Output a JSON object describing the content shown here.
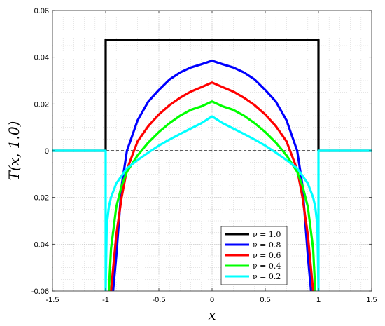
{
  "chart_data": {
    "type": "line",
    "xlabel": "x",
    "ylabel": "T(x, 1.0)",
    "xlim": [
      -1.5,
      1.5
    ],
    "ylim": [
      -0.06,
      0.06
    ],
    "x_ticks": [
      -1.5,
      -1,
      -0.5,
      0,
      0.5,
      1,
      1.5
    ],
    "x_tick_labels": [
      "-1.5",
      "-1",
      "-0.5",
      "0",
      "0.5",
      "1",
      "1.5"
    ],
    "y_ticks": [
      -0.06,
      -0.04,
      -0.02,
      0,
      0.02,
      0.04,
      0.06
    ],
    "y_tick_labels": [
      "-0.06",
      "-0.04",
      "-0.02",
      "0",
      "0.02",
      "0.04",
      "0.06"
    ],
    "grid": true,
    "minor_grid": true,
    "legend_position": "bottom-right",
    "reference_line": {
      "y": 0,
      "style": "dashed",
      "color": "#000000"
    },
    "series": [
      {
        "name": "ν = 1.0",
        "color": "#000000",
        "x": [
          -1.5,
          -1.0,
          -1.0,
          1.0,
          1.0,
          1.5
        ],
        "y": [
          0,
          0,
          0.0475,
          0.0475,
          0,
          0
        ]
      },
      {
        "name": "ν = 0.8",
        "color": "#0000ff",
        "x": [
          -0.93,
          -0.9,
          -0.85,
          -0.8,
          -0.7,
          -0.6,
          -0.5,
          -0.4,
          -0.3,
          -0.2,
          -0.1,
          0,
          0.1,
          0.2,
          0.3,
          0.4,
          0.5,
          0.6,
          0.7,
          0.8,
          0.85,
          0.9,
          0.93
        ],
        "y": [
          -0.06,
          -0.045,
          -0.015,
          0.0,
          0.013,
          0.021,
          0.026,
          0.0305,
          0.0335,
          0.0356,
          0.037,
          0.0385,
          0.037,
          0.0356,
          0.0335,
          0.0305,
          0.026,
          0.021,
          0.013,
          0.0,
          -0.015,
          -0.045,
          -0.06
        ]
      },
      {
        "name": "ν = 0.6",
        "color": "#ff0000",
        "x": [
          -0.95,
          -0.9,
          -0.85,
          -0.8,
          -0.7,
          -0.6,
          -0.5,
          -0.4,
          -0.3,
          -0.2,
          -0.1,
          0,
          0.1,
          0.2,
          0.3,
          0.4,
          0.5,
          0.6,
          0.7,
          0.8,
          0.85,
          0.9,
          0.95
        ],
        "y": [
          -0.06,
          -0.036,
          -0.02,
          -0.008,
          0.004,
          0.0105,
          0.0155,
          0.0195,
          0.0227,
          0.0253,
          0.0272,
          0.0292,
          0.0272,
          0.0253,
          0.0227,
          0.0195,
          0.0155,
          0.0105,
          0.004,
          -0.008,
          -0.02,
          -0.036,
          -0.06
        ]
      },
      {
        "name": "ν = 0.4",
        "color": "#00ff00",
        "x": [
          -0.97,
          -0.95,
          -0.9,
          -0.85,
          -0.8,
          -0.7,
          -0.6,
          -0.5,
          -0.4,
          -0.3,
          -0.2,
          -0.1,
          0,
          0.1,
          0.2,
          0.3,
          0.4,
          0.5,
          0.6,
          0.7,
          0.8,
          0.85,
          0.9,
          0.95,
          0.97
        ],
        "y": [
          -0.06,
          -0.042,
          -0.024,
          -0.015,
          -0.009,
          -0.002,
          0.0035,
          0.008,
          0.0118,
          0.015,
          0.0175,
          0.019,
          0.0211,
          0.019,
          0.0175,
          0.015,
          0.0118,
          0.008,
          0.0035,
          -0.002,
          -0.009,
          -0.015,
          -0.024,
          -0.042,
          -0.06
        ]
      },
      {
        "name": "ν = 0.2",
        "color": "#00ffff",
        "x": [
          -1.5,
          -1.0,
          -1.0,
          -0.99,
          -0.97,
          -0.95,
          -0.9,
          -0.8,
          -0.7,
          -0.6,
          -0.5,
          -0.4,
          -0.3,
          -0.2,
          -0.1,
          0,
          0.1,
          0.2,
          0.3,
          0.4,
          0.5,
          0.6,
          0.7,
          0.8,
          0.9,
          0.95,
          0.97,
          0.99,
          1.0,
          1.0,
          1.5
        ],
        "y": [
          0,
          0,
          -0.06,
          -0.032,
          -0.024,
          -0.02,
          -0.014,
          -0.0075,
          -0.004,
          -0.0008,
          0.0022,
          0.0048,
          0.0072,
          0.0095,
          0.0118,
          0.0147,
          0.0118,
          0.0095,
          0.0072,
          0.0048,
          0.0022,
          -0.0008,
          -0.004,
          -0.0075,
          -0.014,
          -0.02,
          -0.024,
          -0.032,
          -0.06,
          0,
          0
        ]
      }
    ]
  }
}
